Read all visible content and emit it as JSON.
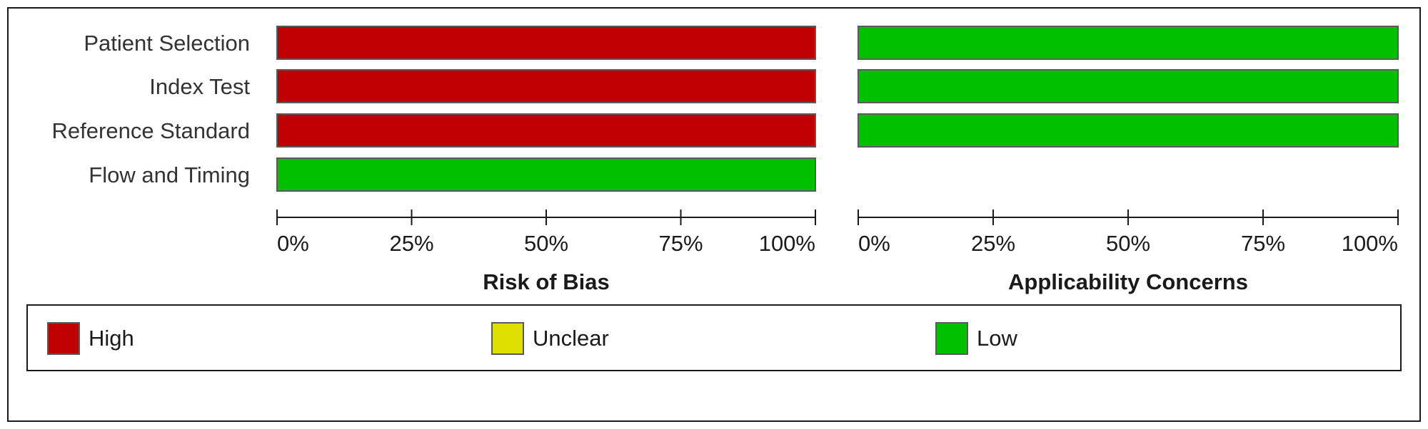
{
  "chart_data": {
    "type": "bar",
    "orientation": "horizontal",
    "stacked": true,
    "categories": [
      "Patient Selection",
      "Index Test",
      "Reference Standard",
      "Flow and Timing"
    ],
    "xlim": [
      0,
      100
    ],
    "tick_labels": [
      "0%",
      "25%",
      "50%",
      "75%",
      "100%"
    ],
    "colors": {
      "High": "#c00000",
      "Unclear": "#e0e000",
      "Low": "#00c000"
    },
    "panels": [
      {
        "title": "Risk of Bias",
        "series": [
          {
            "name": "High",
            "values": [
              100,
              100,
              100,
              0
            ]
          },
          {
            "name": "Unclear",
            "values": [
              0,
              0,
              0,
              0
            ]
          },
          {
            "name": "Low",
            "values": [
              0,
              0,
              0,
              100
            ]
          }
        ]
      },
      {
        "title": "Applicability Concerns",
        "series": [
          {
            "name": "High",
            "values": [
              0,
              0,
              0,
              null
            ]
          },
          {
            "name": "Unclear",
            "values": [
              0,
              0,
              0,
              null
            ]
          },
          {
            "name": "Low",
            "values": [
              100,
              100,
              100,
              null
            ]
          }
        ]
      }
    ],
    "legend": {
      "position": "bottom",
      "items": [
        "High",
        "Unclear",
        "Low"
      ]
    }
  }
}
